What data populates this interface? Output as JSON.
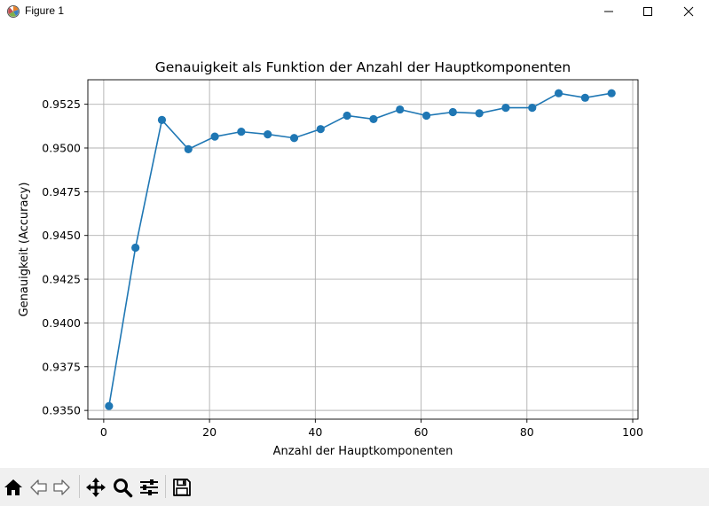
{
  "window": {
    "title": "Figure 1"
  },
  "toolbar": {
    "buttons": [
      "home-icon",
      "back-arrow-icon",
      "forward-arrow-icon",
      "pan-icon",
      "zoom-icon",
      "configure-subplots-icon",
      "save-icon"
    ]
  },
  "colors": {
    "line": "#1f77b4",
    "grid": "#b0b0b0",
    "toolbar_bg": "#f0f0f0"
  },
  "chart_data": {
    "type": "line",
    "title": "Genauigkeit als Funktion der Anzahl der Hauptkomponenten",
    "xlabel": "Anzahl der Hauptkomponenten",
    "ylabel": "Genauigkeit (Accuracy)",
    "xlim": [
      -3,
      101
    ],
    "ylim": [
      0.9345,
      0.9539
    ],
    "xticks": [
      0,
      20,
      40,
      60,
      80,
      100
    ],
    "xtick_labels": [
      "0",
      "20",
      "40",
      "60",
      "80",
      "100"
    ],
    "yticks": [
      0.935,
      0.9375,
      0.94,
      0.9425,
      0.945,
      0.9475,
      0.95,
      0.9525
    ],
    "ytick_labels": [
      "0.9350",
      "0.9375",
      "0.9400",
      "0.9425",
      "0.9450",
      "0.9475",
      "0.9500",
      "0.9525"
    ],
    "grid": true,
    "marker": "circle",
    "series": [
      {
        "x": [
          1,
          6,
          11,
          16,
          21,
          26,
          31,
          36,
          41,
          46,
          51,
          56,
          61,
          66,
          71,
          76,
          81,
          86,
          91,
          96
        ],
        "values": [
          0.93525,
          0.9443,
          0.9516,
          0.94993,
          0.95065,
          0.95093,
          0.95078,
          0.95057,
          0.95108,
          0.95185,
          0.95165,
          0.9522,
          0.95185,
          0.95205,
          0.95198,
          0.9523,
          0.9523,
          0.95313,
          0.95287,
          0.95313
        ]
      }
    ]
  }
}
